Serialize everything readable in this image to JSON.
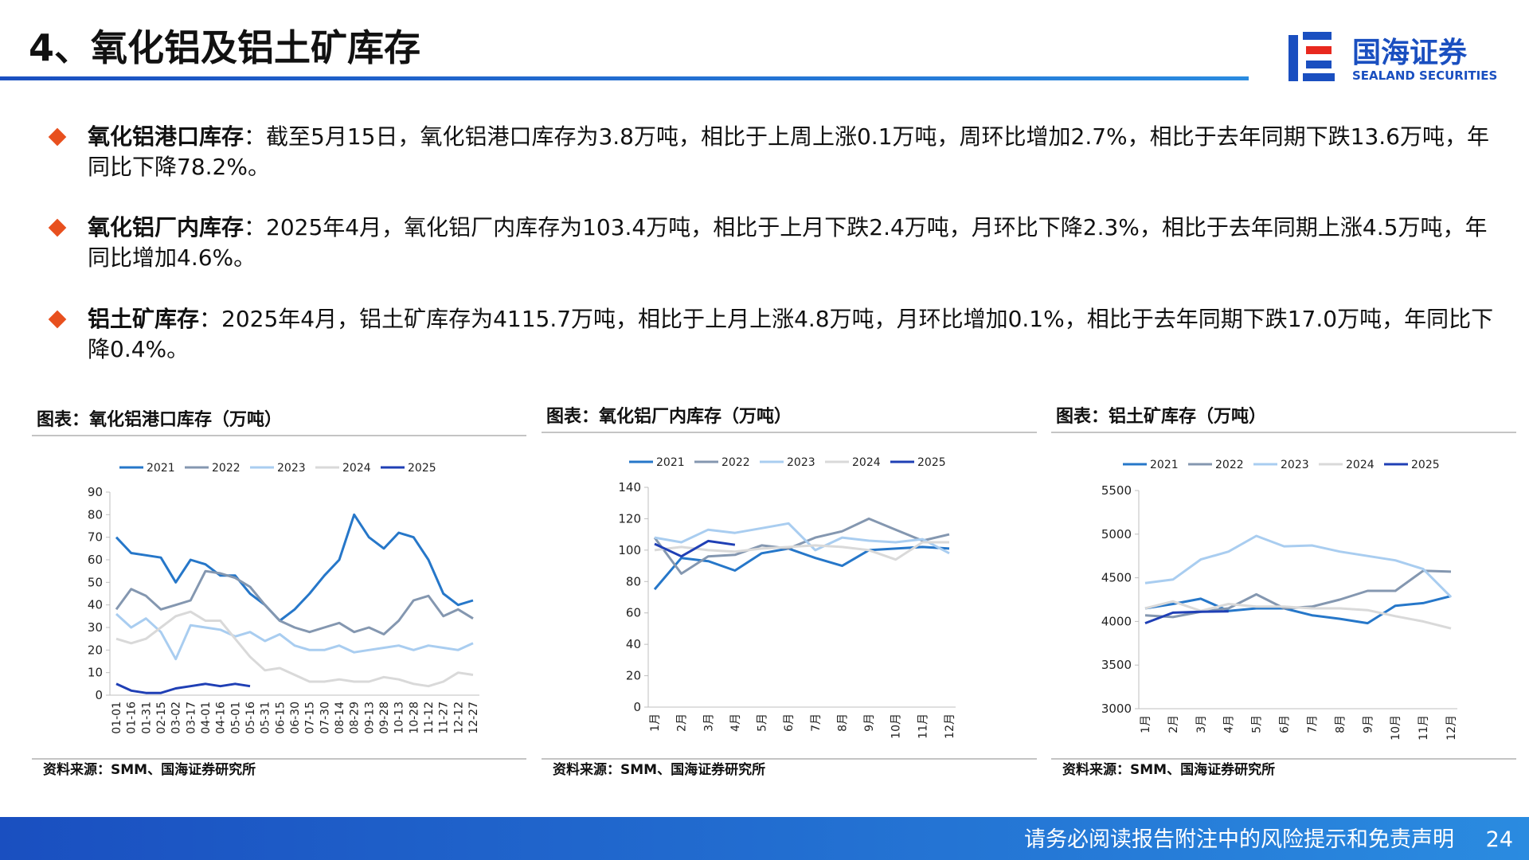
{
  "header": {
    "title": "4、氧化铝及铝土矿库存",
    "logo_cn": "国海证券",
    "logo_en": "SEALAND SECURITIES"
  },
  "bullets": [
    {
      "label": "氧化铝港口库存",
      "text": "：截至5月15日，氧化铝港口库存为3.8万吨，相比于上周上涨0.1万吨，周环比增加2.7%，相比于去年同期下跌13.6万吨，年同比下降78.2%。"
    },
    {
      "label": "氧化铝厂内库存",
      "text": "：2025年4月，氧化铝厂内库存为103.4万吨，相比于上月下跌2.4万吨，月环比下降2.3%，相比于去年同期上涨4.5万吨，年同比增加4.6%。"
    },
    {
      "label": "铝土矿库存",
      "text": "：2025年4月，铝土矿库存为4115.7万吨，相比于上月上涨4.8万吨，月环比增加0.1%，相比于去年同期下跌17.0万吨，年同比下降0.4%。"
    }
  ],
  "chart_data": [
    {
      "type": "line",
      "title": "图表：氧化铝港口库存（万吨）",
      "source": "资料来源：SMM、国海证券研究所",
      "categories": [
        "01-01",
        "01-16",
        "01-31",
        "02-15",
        "03-02",
        "03-17",
        "04-01",
        "04-16",
        "05-01",
        "05-16",
        "05-31",
        "06-15",
        "06-30",
        "07-15",
        "07-30",
        "08-14",
        "08-29",
        "09-13",
        "09-28",
        "10-13",
        "10-28",
        "11-12",
        "11-27",
        "12-12",
        "12-27"
      ],
      "ylim": [
        0,
        90
      ],
      "yticks": [
        0,
        10,
        20,
        30,
        40,
        50,
        60,
        70,
        80,
        90
      ],
      "series": [
        {
          "name": "2021",
          "color": "#2677c9",
          "values": [
            70,
            63,
            62,
            61,
            50,
            60,
            58,
            53,
            53,
            45,
            40,
            33,
            38,
            45,
            53,
            60,
            80,
            70,
            65,
            72,
            70,
            60,
            45,
            40,
            42
          ]
        },
        {
          "name": "2022",
          "color": "#8497b0",
          "values": [
            38,
            47,
            44,
            38,
            40,
            42,
            55,
            54,
            52,
            48,
            40,
            33,
            30,
            28,
            30,
            32,
            28,
            30,
            27,
            33,
            42,
            44,
            35,
            38,
            34
          ]
        },
        {
          "name": "2023",
          "color": "#a9cdf0",
          "values": [
            36,
            30,
            34,
            28,
            16,
            31,
            30,
            29,
            26,
            28,
            24,
            27,
            22,
            20,
            20,
            22,
            19,
            20,
            21,
            22,
            20,
            22,
            21,
            20,
            23
          ]
        },
        {
          "name": "2024",
          "color": "#d9d9d9",
          "values": [
            25,
            23,
            25,
            30,
            35,
            37,
            33,
            33,
            25,
            17,
            11,
            12,
            9,
            6,
            6,
            7,
            6,
            6,
            8,
            7,
            5,
            4,
            6,
            10,
            9
          ]
        },
        {
          "name": "2025",
          "color": "#1f3fb5",
          "values": [
            5,
            2,
            1,
            1,
            3,
            4,
            5,
            4,
            5,
            4,
            null,
            null,
            null,
            null,
            null,
            null,
            null,
            null,
            null,
            null,
            null,
            null,
            null,
            null,
            null
          ]
        }
      ]
    },
    {
      "type": "line",
      "title": "图表：氧化铝厂内库存（万吨）",
      "source": "资料来源：SMM、国海证券研究所",
      "categories": [
        "1月",
        "2月",
        "3月",
        "4月",
        "5月",
        "6月",
        "7月",
        "8月",
        "9月",
        "10月",
        "11月",
        "12月"
      ],
      "ylim": [
        0,
        140
      ],
      "yticks": [
        0,
        20,
        40,
        60,
        80,
        100,
        120,
        140
      ],
      "series": [
        {
          "name": "2021",
          "color": "#2677c9",
          "values": [
            75,
            95,
            93,
            87,
            98,
            101,
            95,
            90,
            100,
            101,
            102,
            101
          ]
        },
        {
          "name": "2022",
          "color": "#8497b0",
          "values": [
            108,
            85,
            96,
            97,
            103,
            101,
            108,
            112,
            120,
            113,
            106,
            110
          ]
        },
        {
          "name": "2023",
          "color": "#a9cdf0",
          "values": [
            108,
            105,
            113,
            111,
            114,
            117,
            100,
            108,
            106,
            105,
            107,
            98
          ]
        },
        {
          "name": "2024",
          "color": "#d9d9d9",
          "values": [
            100,
            102,
            100,
            99,
            101,
            102,
            103,
            102,
            100,
            94,
            105,
            105
          ]
        },
        {
          "name": "2025",
          "color": "#1f3fb5",
          "values": [
            104,
            96,
            105.8,
            103.4,
            null,
            null,
            null,
            null,
            null,
            null,
            null,
            null
          ]
        }
      ]
    },
    {
      "type": "line",
      "title": "图表：铝土矿库存（万吨）",
      "source": "资料来源：SMM、国海证券研究所",
      "categories": [
        "1月",
        "2月",
        "3月",
        "4月",
        "5月",
        "6月",
        "7月",
        "8月",
        "9月",
        "10月",
        "11月",
        "12月"
      ],
      "ylim": [
        3000,
        5500
      ],
      "yticks": [
        3000,
        3500,
        4000,
        4500,
        5000,
        5500
      ],
      "series": [
        {
          "name": "2021",
          "color": "#2677c9",
          "values": [
            4150,
            4200,
            4260,
            4120,
            4150,
            4150,
            4070,
            4030,
            3980,
            4180,
            4210,
            4290
          ]
        },
        {
          "name": "2022",
          "color": "#8497b0",
          "values": [
            4070,
            4050,
            4110,
            4150,
            4310,
            4150,
            4170,
            4250,
            4350,
            4350,
            4580,
            4570
          ]
        },
        {
          "name": "2023",
          "color": "#a9cdf0",
          "values": [
            4440,
            4480,
            4710,
            4800,
            4980,
            4860,
            4870,
            4800,
            4750,
            4700,
            4600,
            4280
          ]
        },
        {
          "name": "2024",
          "color": "#d9d9d9",
          "values": [
            4150,
            4230,
            4120,
            4200,
            4170,
            4170,
            4150,
            4150,
            4130,
            4060,
            4000,
            3920
          ]
        },
        {
          "name": "2025",
          "color": "#1f3fb5",
          "values": [
            3980,
            4100,
            4110,
            4115.7,
            null,
            null,
            null,
            null,
            null,
            null,
            null,
            null
          ]
        }
      ]
    }
  ],
  "footer": {
    "disclaimer": "请务必阅读报告附注中的风险提示和免责声明",
    "page": "24"
  }
}
